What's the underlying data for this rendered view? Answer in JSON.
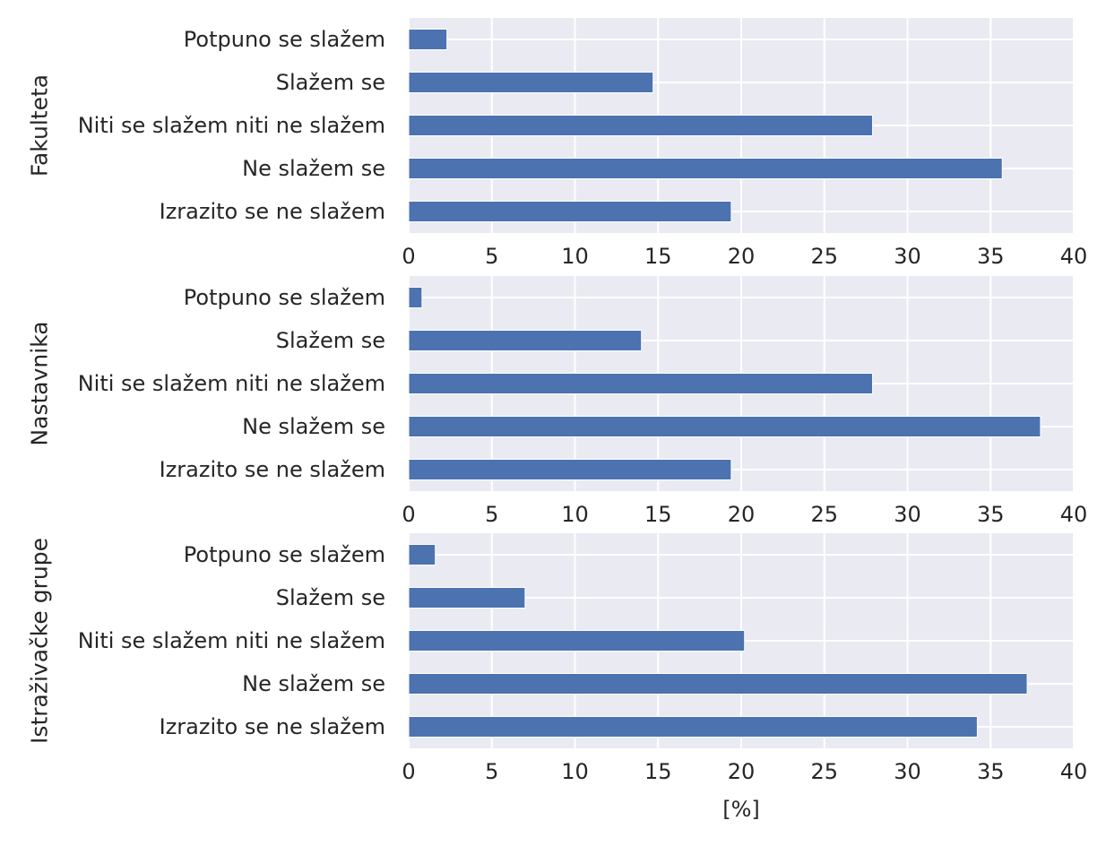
{
  "chart_data": [
    {
      "type": "bar",
      "orientation": "horizontal",
      "ylabel": "Fakulteta",
      "xlabel": "",
      "categories": [
        "Potpuno se slažem",
        "Slažem se",
        "Niti se slažem niti ne slažem",
        "Ne slažem se",
        "Izrazito se ne slažem"
      ],
      "values": [
        2.3,
        14.7,
        27.9,
        35.7,
        19.4
      ],
      "xlim": [
        0,
        40
      ],
      "xticks": [
        "0",
        "5",
        "10",
        "15",
        "20",
        "25",
        "30",
        "35",
        "40"
      ],
      "grid": true,
      "bar_color": "#4C72B0"
    },
    {
      "type": "bar",
      "orientation": "horizontal",
      "ylabel": "Nastavnika",
      "xlabel": "",
      "categories": [
        "Potpuno se slažem",
        "Slažem se",
        "Niti se slažem niti ne slažem",
        "Ne slažem se",
        "Izrazito se ne slažem"
      ],
      "values": [
        0.8,
        14.0,
        27.9,
        38.0,
        19.4
      ],
      "xlim": [
        0,
        40
      ],
      "xticks": [
        "0",
        "5",
        "10",
        "15",
        "20",
        "25",
        "30",
        "35",
        "40"
      ],
      "grid": true,
      "bar_color": "#4C72B0"
    },
    {
      "type": "bar",
      "orientation": "horizontal",
      "ylabel": "Istraživačke grupe",
      "xlabel": "[%]",
      "categories": [
        "Potpuno se slažem",
        "Slažem se",
        "Niti se slažem niti ne slažem",
        "Ne slažem se",
        "Izrazito se ne slažem"
      ],
      "values": [
        1.6,
        7.0,
        20.2,
        37.2,
        34.2
      ],
      "xlim": [
        0,
        40
      ],
      "xticks": [
        "0",
        "5",
        "10",
        "15",
        "20",
        "25",
        "30",
        "35",
        "40"
      ],
      "grid": true,
      "bar_color": "#4C72B0"
    }
  ],
  "style": {
    "axes_background": "#EAEAF2",
    "grid_color": "#FFFFFF"
  }
}
